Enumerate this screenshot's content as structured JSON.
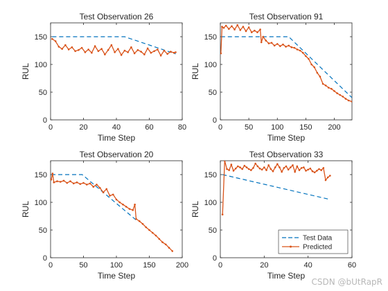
{
  "figure": {
    "watermark": "CSDN @bUtRapR"
  },
  "chart_data": [
    {
      "type": "line",
      "title": "Test Observation 26",
      "xlabel": "Time Step",
      "ylabel": "RUL",
      "xlim": [
        0,
        80
      ],
      "ylim": [
        0,
        175
      ],
      "xticks": [
        0,
        20,
        40,
        60,
        80
      ],
      "yticks": [
        0,
        50,
        100,
        150
      ],
      "series": [
        {
          "name": "Test Data",
          "color": "#0072BD",
          "style": "dashed",
          "x": [
            1,
            45,
            76
          ],
          "y": [
            150,
            150,
            119
          ]
        },
        {
          "name": "Predicted",
          "color": "#D95319",
          "style": "solid-dot",
          "x": [
            1,
            3,
            5,
            7,
            9,
            11,
            13,
            15,
            17,
            19,
            21,
            23,
            25,
            27,
            29,
            31,
            33,
            35,
            37,
            39,
            41,
            43,
            45,
            47,
            49,
            51,
            53,
            55,
            57,
            59,
            61,
            63,
            65,
            67,
            69,
            71,
            73,
            75,
            76
          ],
          "y": [
            146,
            142,
            132,
            128,
            135,
            127,
            131,
            124,
            126,
            130,
            122,
            127,
            121,
            133,
            124,
            128,
            118,
            126,
            135,
            122,
            128,
            117,
            125,
            122,
            131,
            120,
            126,
            123,
            118,
            129,
            121,
            124,
            127,
            116,
            125,
            119,
            123,
            121,
            122
          ]
        }
      ]
    },
    {
      "type": "line",
      "title": "Test Observation 91",
      "xlabel": "Time Step",
      "ylabel": "RUL",
      "xlim": [
        0,
        231
      ],
      "ylim": [
        0,
        175
      ],
      "xticks": [
        0,
        50,
        100,
        150,
        200
      ],
      "yticks": [
        0,
        50,
        100,
        150
      ],
      "series": [
        {
          "name": "Test Data",
          "color": "#0072BD",
          "style": "dashed",
          "x": [
            1,
            120,
            231
          ],
          "y": [
            150,
            150,
            40
          ]
        },
        {
          "name": "Predicted",
          "color": "#D95319",
          "style": "solid-dot",
          "x": [
            1,
            3,
            6,
            10,
            15,
            20,
            25,
            30,
            35,
            40,
            45,
            50,
            55,
            60,
            65,
            70,
            72,
            75,
            80,
            85,
            90,
            95,
            100,
            105,
            110,
            115,
            120,
            125,
            130,
            135,
            140,
            145,
            150,
            155,
            160,
            165,
            170,
            175,
            180,
            185,
            190,
            195,
            200,
            205,
            210,
            215,
            220,
            225,
            231
          ],
          "y": [
            120,
            168,
            166,
            170,
            164,
            169,
            163,
            171,
            162,
            168,
            160,
            167,
            158,
            161,
            158,
            163,
            140,
            150,
            143,
            138,
            139,
            134,
            137,
            133,
            136,
            132,
            134,
            131,
            130,
            127,
            125,
            121,
            115,
            110,
            100,
            95,
            85,
            78,
            65,
            62,
            58,
            56,
            52,
            48,
            45,
            42,
            38,
            35,
            33
          ]
        }
      ]
    },
    {
      "type": "line",
      "title": "Test Observation 20",
      "xlabel": "Time Step",
      "ylabel": "RUL",
      "xlim": [
        0,
        200
      ],
      "ylim": [
        0,
        175
      ],
      "xticks": [
        0,
        50,
        100,
        150,
        200
      ],
      "yticks": [
        0,
        50,
        100,
        150
      ],
      "series": [
        {
          "name": "Test Data",
          "color": "#0072BD",
          "style": "dashed",
          "x": [
            1,
            48,
            130
          ],
          "y": [
            150,
            150,
            68
          ]
        },
        {
          "name": "Predicted",
          "color": "#D95319",
          "style": "solid-dot",
          "x": [
            1,
            3,
            5,
            10,
            15,
            20,
            25,
            30,
            35,
            40,
            45,
            50,
            55,
            60,
            65,
            70,
            75,
            80,
            85,
            90,
            95,
            100,
            105,
            110,
            115,
            120,
            125,
            128,
            130,
            135,
            140,
            145,
            150,
            155,
            160,
            165,
            170,
            175,
            180,
            185
          ],
          "y": [
            141,
            152,
            136,
            138,
            137,
            139,
            135,
            138,
            134,
            136,
            133,
            135,
            132,
            134,
            128,
            132,
            126,
            118,
            124,
            112,
            114,
            105,
            100,
            96,
            92,
            88,
            86,
            96,
            70,
            66,
            61,
            55,
            50,
            45,
            40,
            34,
            28,
            24,
            18,
            12
          ]
        }
      ]
    },
    {
      "type": "line",
      "title": "Test Observation 33",
      "xlabel": "Time Step",
      "ylabel": "RUL",
      "xlim": [
        0,
        60
      ],
      "ylim": [
        0,
        175
      ],
      "xticks": [
        0,
        20,
        40,
        60
      ],
      "yticks": [
        0,
        50,
        100,
        150
      ],
      "legend": {
        "location": "bottom-right",
        "entries": [
          "Test Data",
          "Predicted"
        ]
      },
      "series": [
        {
          "name": "Test Data",
          "color": "#0072BD",
          "style": "dashed",
          "x": [
            1,
            49
          ],
          "y": [
            150,
            106
          ]
        },
        {
          "name": "Predicted",
          "color": "#D95319",
          "style": "solid-dot",
          "x": [
            1,
            2,
            3,
            4,
            5,
            6,
            7,
            8,
            9,
            10,
            11,
            12,
            13,
            14,
            15,
            16,
            17,
            18,
            19,
            20,
            21,
            22,
            23,
            24,
            25,
            26,
            27,
            28,
            29,
            30,
            31,
            32,
            33,
            34,
            35,
            36,
            37,
            38,
            39,
            40,
            41,
            42,
            43,
            44,
            45,
            46,
            47,
            48,
            49,
            50
          ],
          "y": [
            78,
            175,
            160,
            158,
            168,
            157,
            161,
            165,
            163,
            160,
            166,
            163,
            160,
            158,
            162,
            170,
            165,
            161,
            159,
            163,
            158,
            167,
            160,
            156,
            163,
            169,
            163,
            155,
            162,
            165,
            159,
            163,
            167,
            155,
            165,
            158,
            162,
            163,
            157,
            159,
            161,
            156,
            154,
            157,
            160,
            158,
            162,
            140,
            145,
            148
          ]
        }
      ]
    }
  ]
}
